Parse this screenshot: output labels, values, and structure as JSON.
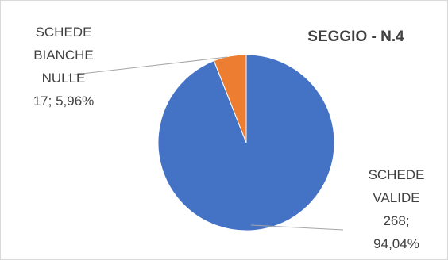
{
  "chart_data": {
    "type": "pie",
    "title": "SEGGIO - N.4",
    "slices": [
      {
        "category": "SCHEDE VALIDE",
        "value": 268,
        "percent": "94,04%",
        "color": "#4472C4",
        "label_lines": [
          "SCHEDE",
          "VALIDE",
          "268;",
          "94,04%"
        ]
      },
      {
        "category": "SCHEDE BIANCHE NULLE",
        "value": 17,
        "percent": "5,96%",
        "color": "#ED7D31",
        "label_lines": [
          "SCHEDE",
          "BIANCHE",
          "NULLE",
          "17; 5,96%"
        ]
      }
    ],
    "legend": "none"
  }
}
